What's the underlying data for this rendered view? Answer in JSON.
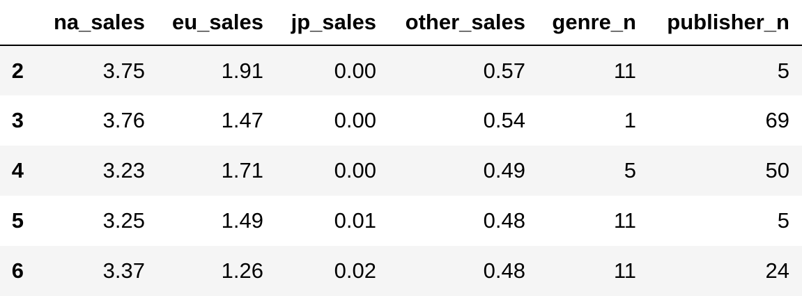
{
  "table": {
    "index_header": "",
    "columns": [
      "na_sales",
      "eu_sales",
      "jp_sales",
      "other_sales",
      "genre_n",
      "publisher_n"
    ],
    "rows": [
      {
        "index": "2",
        "cells": [
          "3.75",
          "1.91",
          "0.00",
          "0.57",
          "11",
          "5"
        ]
      },
      {
        "index": "3",
        "cells": [
          "3.76",
          "1.47",
          "0.00",
          "0.54",
          "1",
          "69"
        ]
      },
      {
        "index": "4",
        "cells": [
          "3.23",
          "1.71",
          "0.00",
          "0.49",
          "5",
          "50"
        ]
      },
      {
        "index": "5",
        "cells": [
          "3.25",
          "1.49",
          "0.01",
          "0.48",
          "11",
          "5"
        ]
      },
      {
        "index": "6",
        "cells": [
          "3.37",
          "1.26",
          "0.02",
          "0.48",
          "11",
          "24"
        ]
      }
    ]
  },
  "colors": {
    "text": "#000000",
    "row_stripe": "#f5f5f5",
    "background": "#ffffff"
  }
}
